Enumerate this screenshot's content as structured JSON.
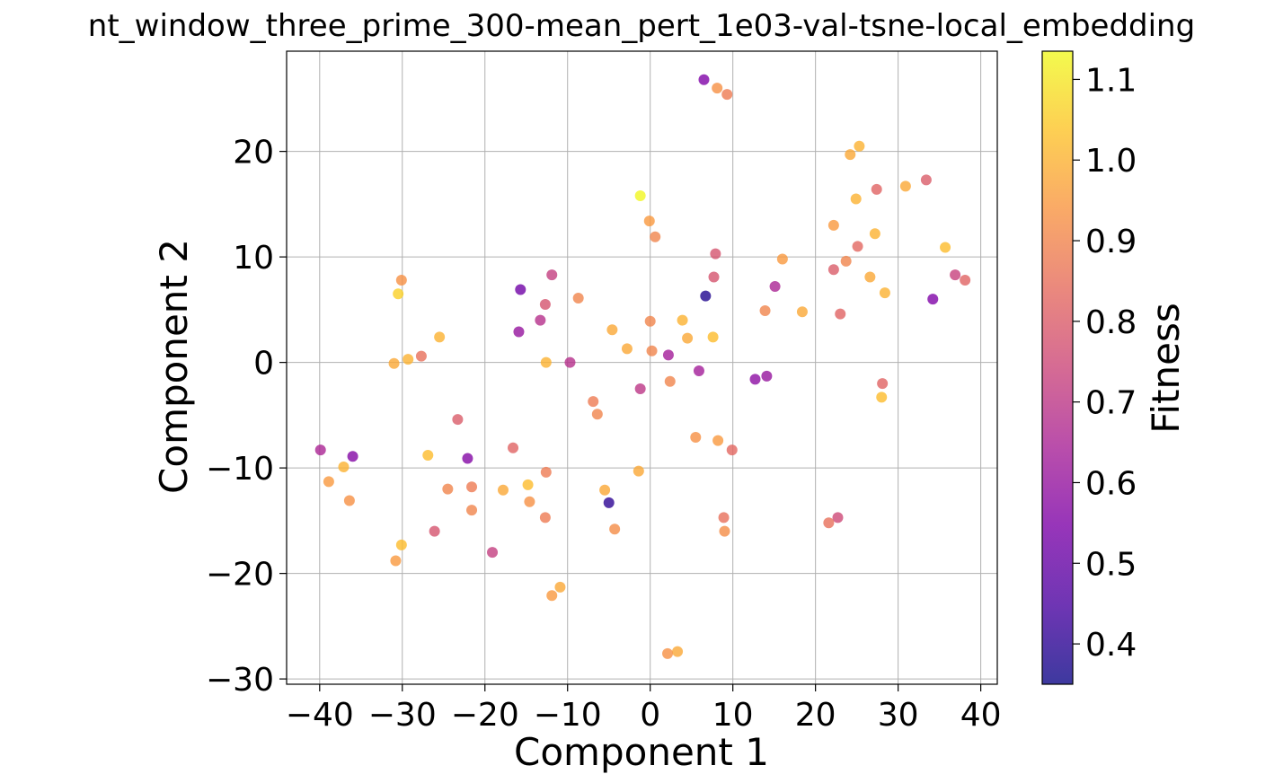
{
  "chart_data": {
    "type": "scatter",
    "title": "nt_window_three_prime_300-mean_pert_1e03-val-tsne-local_embedding",
    "xlabel": "Component 1",
    "ylabel": "Component 2",
    "xlim": [
      -44,
      42
    ],
    "ylim": [
      -30.5,
      29.5
    ],
    "xticks": [
      -40,
      -30,
      -20,
      -10,
      0,
      10,
      20,
      30,
      40
    ],
    "xtick_labels": [
      "−40",
      "−30",
      "−20",
      "−10",
      "0",
      "10",
      "20",
      "30",
      "40"
    ],
    "yticks": [
      -30,
      -20,
      -10,
      0,
      10,
      20
    ],
    "ytick_labels": [
      "−30",
      "−20",
      "−10",
      "0",
      "10",
      "20"
    ],
    "grid": true,
    "colormap": "plasma",
    "colorbar": {
      "label": "Fitness",
      "range": [
        0.35,
        1.135
      ],
      "ticks": [
        0.4,
        0.5,
        0.6,
        0.7,
        0.8,
        0.9,
        1.0,
        1.1
      ],
      "tick_labels": [
        "0.4",
        "0.5",
        "0.6",
        "0.7",
        "0.8",
        "0.9",
        "1.0",
        "1.1"
      ]
    },
    "points": [
      {
        "x": 6.5,
        "y": 26.8,
        "c": 0.55
      },
      {
        "x": 8.1,
        "y": 26.0,
        "c": 0.93
      },
      {
        "x": 9.3,
        "y": 25.4,
        "c": 0.88
      },
      {
        "x": -1.2,
        "y": 15.8,
        "c": 1.13
      },
      {
        "x": -0.1,
        "y": 13.4,
        "c": 0.95
      },
      {
        "x": 0.6,
        "y": 11.9,
        "c": 0.9
      },
      {
        "x": 25.3,
        "y": 20.5,
        "c": 1.0
      },
      {
        "x": 24.2,
        "y": 19.7,
        "c": 0.98
      },
      {
        "x": 30.9,
        "y": 16.7,
        "c": 0.98
      },
      {
        "x": 33.4,
        "y": 17.3,
        "c": 0.8
      },
      {
        "x": 27.4,
        "y": 16.4,
        "c": 0.82
      },
      {
        "x": 24.9,
        "y": 15.5,
        "c": 1.0
      },
      {
        "x": 22.2,
        "y": 13.0,
        "c": 0.95
      },
      {
        "x": 27.2,
        "y": 12.2,
        "c": 1.0
      },
      {
        "x": 35.7,
        "y": 10.9,
        "c": 1.02
      },
      {
        "x": 25.1,
        "y": 11.0,
        "c": 0.83
      },
      {
        "x": 16.0,
        "y": 9.8,
        "c": 0.95
      },
      {
        "x": 23.7,
        "y": 9.6,
        "c": 0.9
      },
      {
        "x": 22.2,
        "y": 8.8,
        "c": 0.8
      },
      {
        "x": 26.6,
        "y": 8.1,
        "c": 0.98
      },
      {
        "x": 36.9,
        "y": 8.3,
        "c": 0.73
      },
      {
        "x": 38.1,
        "y": 7.8,
        "c": 0.82
      },
      {
        "x": 28.4,
        "y": 6.6,
        "c": 1.0
      },
      {
        "x": 34.2,
        "y": 6.0,
        "c": 0.55
      },
      {
        "x": 15.1,
        "y": 7.2,
        "c": 0.65
      },
      {
        "x": 7.9,
        "y": 10.3,
        "c": 0.78
      },
      {
        "x": 7.7,
        "y": 8.1,
        "c": 0.78
      },
      {
        "x": 6.7,
        "y": 6.3,
        "c": 0.38
      },
      {
        "x": 13.9,
        "y": 4.9,
        "c": 0.9
      },
      {
        "x": 18.4,
        "y": 4.8,
        "c": 0.98
      },
      {
        "x": 23.0,
        "y": 4.6,
        "c": 0.82
      },
      {
        "x": -30.1,
        "y": 7.8,
        "c": 0.93
      },
      {
        "x": -30.5,
        "y": 6.5,
        "c": 1.06
      },
      {
        "x": -15.7,
        "y": 6.9,
        "c": 0.52
      },
      {
        "x": -11.9,
        "y": 8.3,
        "c": 0.72
      },
      {
        "x": -12.7,
        "y": 5.5,
        "c": 0.78
      },
      {
        "x": -13.3,
        "y": 4.0,
        "c": 0.68
      },
      {
        "x": -15.9,
        "y": 2.9,
        "c": 0.6
      },
      {
        "x": -8.7,
        "y": 6.1,
        "c": 0.9
      },
      {
        "x": -4.6,
        "y": 3.1,
        "c": 0.98
      },
      {
        "x": 0.0,
        "y": 3.9,
        "c": 0.9
      },
      {
        "x": 3.9,
        "y": 4.0,
        "c": 1.0
      },
      {
        "x": 7.6,
        "y": 2.4,
        "c": 1.02
      },
      {
        "x": 4.5,
        "y": 2.3,
        "c": 0.98
      },
      {
        "x": -25.5,
        "y": 2.4,
        "c": 1.0
      },
      {
        "x": -2.8,
        "y": 1.3,
        "c": 0.98
      },
      {
        "x": 0.2,
        "y": 1.1,
        "c": 0.9
      },
      {
        "x": 2.2,
        "y": 0.7,
        "c": 0.63
      },
      {
        "x": -27.7,
        "y": 0.6,
        "c": 0.85
      },
      {
        "x": -29.3,
        "y": 0.3,
        "c": 1.0
      },
      {
        "x": -31.0,
        "y": -0.1,
        "c": 0.98
      },
      {
        "x": -12.6,
        "y": 0.0,
        "c": 1.0
      },
      {
        "x": -9.7,
        "y": 0.0,
        "c": 0.68
      },
      {
        "x": 5.9,
        "y": -0.8,
        "c": 0.63
      },
      {
        "x": 14.1,
        "y": -1.3,
        "c": 0.6
      },
      {
        "x": 12.7,
        "y": -1.6,
        "c": 0.58
      },
      {
        "x": 2.4,
        "y": -1.8,
        "c": 0.9
      },
      {
        "x": 28.1,
        "y": -2.0,
        "c": 0.82
      },
      {
        "x": -1.2,
        "y": -2.5,
        "c": 0.7
      },
      {
        "x": 28.0,
        "y": -3.3,
        "c": 1.02
      },
      {
        "x": -6.9,
        "y": -3.7,
        "c": 0.88
      },
      {
        "x": -6.4,
        "y": -4.9,
        "c": 0.9
      },
      {
        "x": -23.3,
        "y": -5.4,
        "c": 0.8
      },
      {
        "x": 5.5,
        "y": -7.1,
        "c": 0.93
      },
      {
        "x": 8.2,
        "y": -7.4,
        "c": 0.95
      },
      {
        "x": 9.9,
        "y": -8.3,
        "c": 0.83
      },
      {
        "x": -16.6,
        "y": -8.1,
        "c": 0.82
      },
      {
        "x": -39.9,
        "y": -8.3,
        "c": 0.65
      },
      {
        "x": -36.0,
        "y": -8.9,
        "c": 0.56
      },
      {
        "x": -26.9,
        "y": -8.8,
        "c": 1.02
      },
      {
        "x": -22.1,
        "y": -9.1,
        "c": 0.56
      },
      {
        "x": -37.1,
        "y": -9.9,
        "c": 1.0
      },
      {
        "x": -1.4,
        "y": -10.3,
        "c": 0.98
      },
      {
        "x": -12.6,
        "y": -10.4,
        "c": 0.88
      },
      {
        "x": -38.9,
        "y": -11.3,
        "c": 0.95
      },
      {
        "x": -14.8,
        "y": -11.6,
        "c": 1.02
      },
      {
        "x": -21.6,
        "y": -11.8,
        "c": 0.88
      },
      {
        "x": -24.5,
        "y": -12.0,
        "c": 0.9
      },
      {
        "x": -17.8,
        "y": -12.1,
        "c": 0.98
      },
      {
        "x": -5.5,
        "y": -12.1,
        "c": 0.98
      },
      {
        "x": -36.4,
        "y": -13.1,
        "c": 0.93
      },
      {
        "x": -14.6,
        "y": -13.2,
        "c": 0.93
      },
      {
        "x": -5.0,
        "y": -13.3,
        "c": 0.4
      },
      {
        "x": -21.6,
        "y": -14.0,
        "c": 0.9
      },
      {
        "x": -12.7,
        "y": -14.7,
        "c": 0.88
      },
      {
        "x": 8.9,
        "y": -14.7,
        "c": 0.85
      },
      {
        "x": 22.7,
        "y": -14.7,
        "c": 0.75
      },
      {
        "x": 21.6,
        "y": -15.2,
        "c": 0.85
      },
      {
        "x": -4.3,
        "y": -15.8,
        "c": 0.92
      },
      {
        "x": 9.0,
        "y": -16.0,
        "c": 0.92
      },
      {
        "x": -26.1,
        "y": -16.0,
        "c": 0.78
      },
      {
        "x": -30.1,
        "y": -17.3,
        "c": 1.02
      },
      {
        "x": -19.1,
        "y": -18.0,
        "c": 0.72
      },
      {
        "x": -30.8,
        "y": -18.8,
        "c": 0.95
      },
      {
        "x": -10.9,
        "y": -21.3,
        "c": 0.98
      },
      {
        "x": -11.9,
        "y": -22.1,
        "c": 0.95
      },
      {
        "x": 3.3,
        "y": -27.4,
        "c": 0.98
      },
      {
        "x": 2.1,
        "y": -27.6,
        "c": 0.93
      }
    ]
  }
}
